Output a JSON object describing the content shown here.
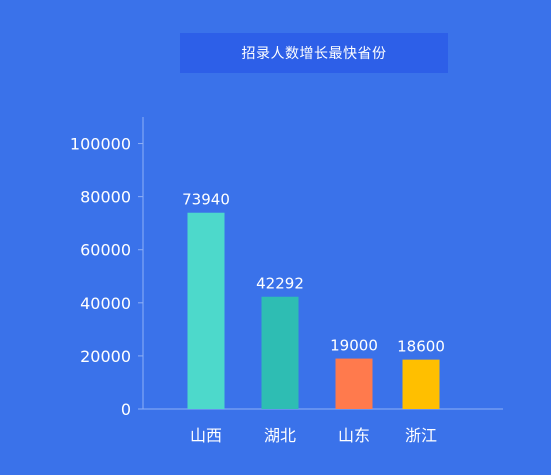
{
  "chart_data": {
    "type": "bar",
    "title": "招录人数增长最快省份",
    "categories": [
      "山西",
      "湖北",
      "山东",
      "浙江"
    ],
    "values": [
      73940,
      42292,
      19000,
      18600
    ],
    "value_labels": [
      "73940",
      "42292",
      "19000",
      "18600"
    ],
    "bar_colors": [
      "#4dd9cb",
      "#2ebdb3",
      "#ff7a4d",
      "#ffbf00"
    ],
    "yticks": [
      0,
      20000,
      40000,
      60000,
      80000,
      100000
    ],
    "ytick_labels": [
      "0",
      "20000",
      "40000",
      "60000",
      "80000",
      "100000"
    ],
    "ylim": [
      0,
      110000
    ],
    "xlabel": "",
    "ylabel": "",
    "grid": false,
    "axis_color": "#8fb0f5",
    "background": "#3a72ea",
    "title_background": "#2d5fe8"
  }
}
